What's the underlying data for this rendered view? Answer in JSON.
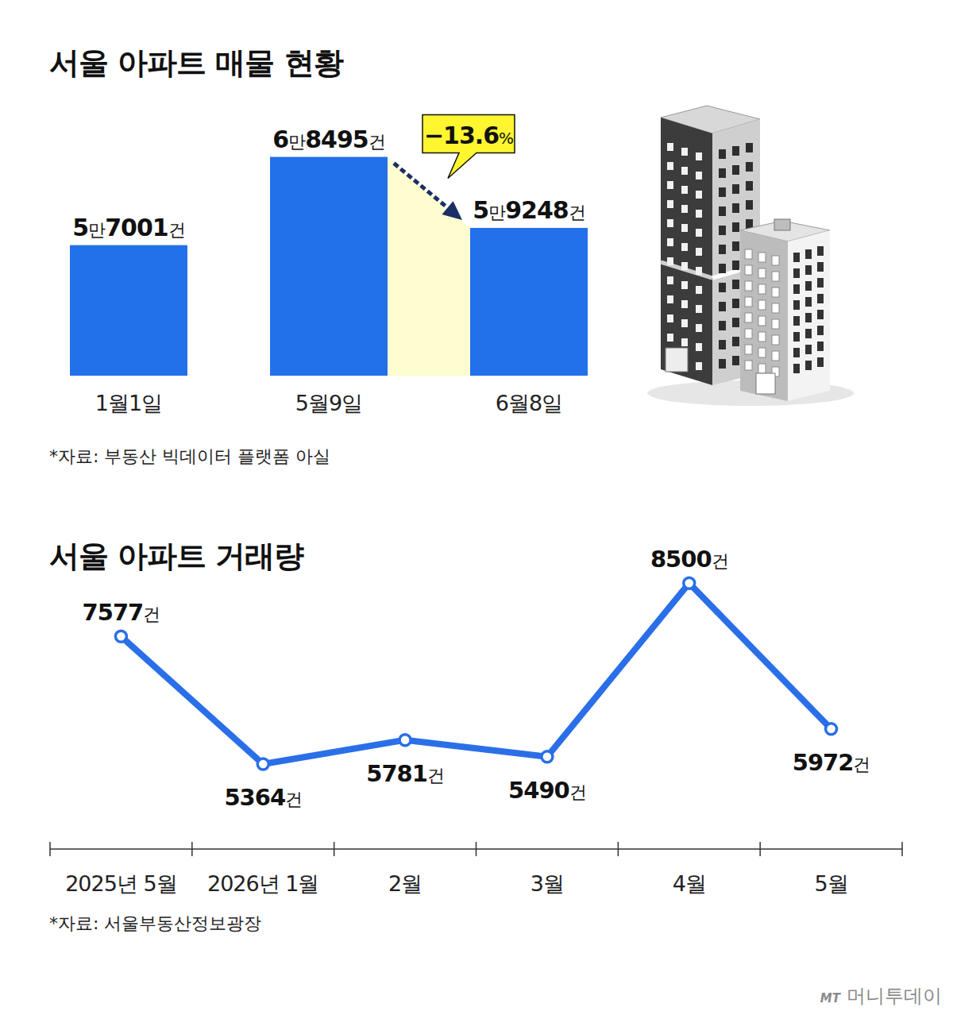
{
  "chart_data": [
    {
      "type": "bar",
      "title": "서울 아파트 매물 현황",
      "categories": [
        "1월1일",
        "5월9일",
        "6월8일"
      ],
      "values": [
        57001,
        68495,
        59248
      ],
      "value_labels": [
        "5만7001건",
        "6만8495건",
        "5만9248건"
      ],
      "color": "#2271ea",
      "ylim": [
        40000,
        70000
      ],
      "data_labels": true,
      "tick_labels": "x",
      "annotation": "−13.6%",
      "source": "*자료: 부동산 빅데이터 플랫폼 아실"
    },
    {
      "type": "line",
      "title": "서울 아파트 거래량",
      "categories": [
        "2025년 5월",
        "2026년 1월",
        "2월",
        "3월",
        "4월",
        "5월"
      ],
      "values": [
        7577,
        5364,
        5781,
        5490,
        8500,
        5972
      ],
      "value_labels": [
        "7577건",
        "5364건",
        "5781건",
        "5490건",
        "8500건",
        "5972건"
      ],
      "color": "#2a6fe8",
      "marker": "circle",
      "ylim": [
        4000,
        9000
      ],
      "data_labels": true,
      "tick_labels": "x",
      "source": "*자료: 서울부동산정보광장"
    }
  ],
  "watermark": {
    "logo": "MT",
    "name": "머니투데이"
  }
}
